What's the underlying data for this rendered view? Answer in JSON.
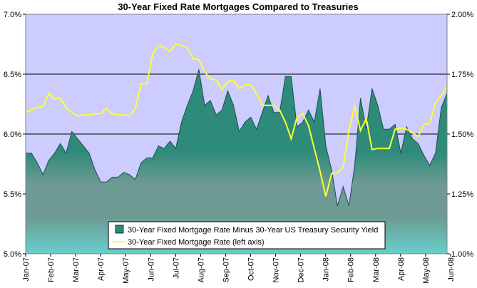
{
  "chart_data": {
    "type": "area",
    "title": "30-Year Fixed Rate Mortgages Compared to Treasuries",
    "left_axis": {
      "min": 5.0,
      "max": 7.0,
      "ticks": [
        "5.0%",
        "5.5%",
        "6.0%",
        "6.5%",
        "7.0%"
      ]
    },
    "right_axis": {
      "min": 1.0,
      "max": 2.0,
      "ticks": [
        "1.00%",
        "1.25%",
        "1.50%",
        "1.75%",
        "2.00%"
      ]
    },
    "x_labels": [
      "Jan-07",
      "Feb-07",
      "Mar-07",
      "Apr-07",
      "May-07",
      "Jun-07",
      "Jul-07",
      "Aug-07",
      "Sep-07",
      "Oct-07",
      "Nov-07",
      "Dec-07",
      "Jan-08",
      "Feb-08",
      "Mar-08",
      "Apr-08",
      "May-08",
      "Jun-08"
    ],
    "weeks_per_month": 4.33,
    "grid_lines": [
      6.0,
      6.5
    ],
    "legend_position": "bottom-center",
    "colors": {
      "plot_background": "#ccccff",
      "spread_fill_top": "#2e8b7a",
      "spread_fill_mid": "#6d9a92",
      "spread_fill_bottom": "#66d0cc",
      "spread_outline": "#1f4f4a",
      "mortgage_line": "#ffff33"
    },
    "series": [
      {
        "name": "30-Year Fixed Mortgage Rate Minus 30-Year US Treasury Security Yield",
        "axis": "right",
        "kind": "area",
        "values": [
          1.42,
          1.42,
          1.38,
          1.33,
          1.39,
          1.42,
          1.46,
          1.42,
          1.51,
          1.48,
          1.45,
          1.42,
          1.35,
          1.3,
          1.3,
          1.32,
          1.32,
          1.34,
          1.33,
          1.31,
          1.38,
          1.4,
          1.4,
          1.45,
          1.44,
          1.47,
          1.44,
          1.55,
          1.62,
          1.68,
          1.77,
          1.62,
          1.64,
          1.58,
          1.6,
          1.68,
          1.62,
          1.51,
          1.55,
          1.57,
          1.52,
          1.59,
          1.66,
          1.59,
          1.59,
          1.74,
          1.74,
          1.53,
          1.55,
          1.6,
          1.55,
          1.69,
          1.45,
          1.35,
          1.2,
          1.28,
          1.2,
          1.37,
          1.65,
          1.52,
          1.69,
          1.62,
          1.52,
          1.52,
          1.54,
          1.42,
          1.53,
          1.48,
          1.46,
          1.41,
          1.37,
          1.42,
          1.61,
          1.67
        ]
      },
      {
        "name": "30-Year Fixed Mortgage Rate (left axis)",
        "axis": "left",
        "kind": "line",
        "values": [
          6.18,
          6.2,
          6.22,
          6.23,
          6.34,
          6.29,
          6.3,
          6.22,
          6.18,
          6.15,
          6.16,
          6.16,
          6.17,
          6.17,
          6.21,
          6.17,
          6.16,
          6.16,
          6.15,
          6.21,
          6.42,
          6.42,
          6.67,
          6.74,
          6.72,
          6.69,
          6.75,
          6.74,
          6.72,
          6.63,
          6.62,
          6.52,
          6.46,
          6.45,
          6.37,
          6.44,
          6.45,
          6.38,
          6.41,
          6.41,
          6.34,
          6.24,
          6.24,
          6.24,
          6.2,
          6.1,
          5.96,
          6.14,
          6.17,
          6.07,
          5.88,
          5.69,
          5.48,
          5.67,
          5.68,
          5.72,
          6.03,
          6.24,
          6.03,
          6.13,
          5.87,
          5.88,
          5.88,
          5.88,
          6.04,
          6.05,
          6.04,
          6.01,
          5.98,
          6.08,
          6.09,
          6.26,
          6.32,
          6.4
        ]
      }
    ]
  }
}
